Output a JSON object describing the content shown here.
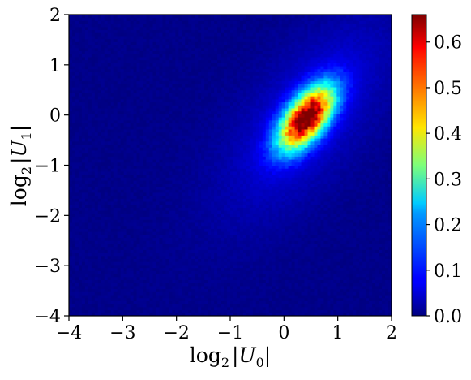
{
  "chart_data": {
    "type": "heatmap",
    "title": "",
    "xlabel": {
      "fn": "log",
      "fn_sub": "2",
      "var": "U",
      "var_sub": "0"
    },
    "ylabel": {
      "fn": "log",
      "fn_sub": "2",
      "var": "U",
      "var_sub": "1"
    },
    "xlim": [
      -4,
      2
    ],
    "ylim": [
      -4,
      2
    ],
    "x_ticks": [
      -4,
      -3,
      -2,
      -1,
      0,
      1,
      2
    ],
    "y_ticks": [
      -4,
      -3,
      -2,
      -1,
      0,
      1,
      2
    ],
    "x_tick_labels": [
      "−4",
      "−3",
      "−2",
      "−1",
      "0",
      "1",
      "2"
    ],
    "y_tick_labels": [
      "−4",
      "−3",
      "−2",
      "−1",
      "0",
      "1",
      "2"
    ],
    "colormap": "jet",
    "colorbar": {
      "range": [
        0.0,
        0.66
      ],
      "ticks": [
        0.0,
        0.1,
        0.2,
        0.3,
        0.4,
        0.5,
        0.6
      ],
      "tick_labels": [
        "0.0",
        "0.1",
        "0.2",
        "0.3",
        "0.4",
        "0.5",
        "0.6"
      ],
      "location": "right"
    },
    "grid": false,
    "distribution": {
      "description": "dense elongated blob, tilted along the diagonal",
      "peak_value": 0.65,
      "center": [
        0.42,
        -0.05
      ],
      "sigma_major": 0.5,
      "sigma_minor": 0.24,
      "orientation_deg": 55
    }
  }
}
